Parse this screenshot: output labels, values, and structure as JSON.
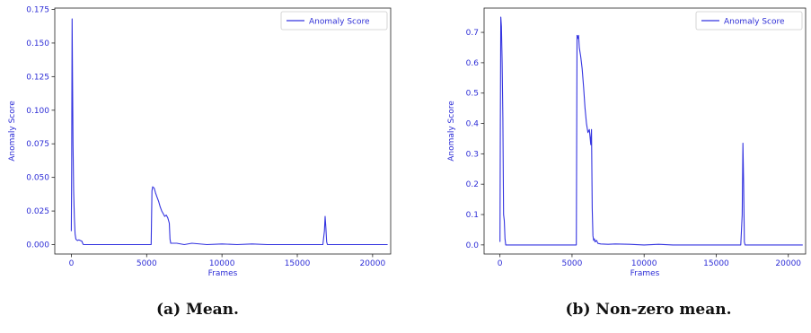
{
  "chart_data": [
    {
      "type": "line",
      "caption": "(a) Mean.",
      "xlabel": "Frames",
      "ylabel": "Anomaly Score",
      "xlim": [
        -1100,
        21200
      ],
      "ylim": [
        -0.007,
        0.176
      ],
      "xticks": [
        0,
        5000,
        10000,
        15000,
        20000
      ],
      "xtick_labels": [
        "0",
        "5000",
        "10000",
        "15000",
        "20000"
      ],
      "yticks": [
        0.0,
        0.025,
        0.05,
        0.075,
        0.1,
        0.125,
        0.15,
        0.175
      ],
      "ytick_labels": [
        "0.000",
        "0.025",
        "0.050",
        "0.075",
        "0.100",
        "0.125",
        "0.150",
        "0.175"
      ],
      "legend": "top-right",
      "grid": false,
      "series": [
        {
          "name": "Anomaly Score",
          "color": "#3434e0",
          "x": [
            0,
            20,
            50,
            80,
            110,
            150,
            200,
            250,
            300,
            400,
            500,
            700,
            750,
            800,
            1000,
            2000,
            3000,
            4000,
            5000,
            5200,
            5300,
            5350,
            5400,
            5500,
            5600,
            5700,
            5800,
            5900,
            6000,
            6100,
            6200,
            6300,
            6400,
            6500,
            6550,
            6600,
            7000,
            7500,
            8000,
            9000,
            10000,
            11000,
            12000,
            13000,
            14000,
            15000,
            16000,
            16500,
            16700,
            16800,
            16850,
            16900,
            16950,
            17000,
            17500,
            18000,
            19000,
            20000,
            21000
          ],
          "y": [
            0.01,
            0.06,
            0.168,
            0.12,
            0.075,
            0.04,
            0.02,
            0.008,
            0.004,
            0.003,
            0.0035,
            0.0025,
            0.001,
            0.0,
            0.0,
            0.0,
            0.0,
            0.0,
            0.0,
            0.0,
            0.0,
            0.04,
            0.043,
            0.042,
            0.038,
            0.035,
            0.032,
            0.028,
            0.025,
            0.023,
            0.021,
            0.022,
            0.02,
            0.016,
            0.004,
            0.001,
            0.001,
            0.0,
            0.001,
            0.0,
            0.0005,
            0.0,
            0.0005,
            0.0,
            0.0,
            0.0,
            0.0,
            0.0,
            0.0,
            0.01,
            0.021,
            0.012,
            0.002,
            0.0,
            0.0,
            0.0,
            0.0,
            0.0,
            0.0
          ]
        }
      ]
    },
    {
      "type": "line",
      "caption": "(b) Non-zero mean.",
      "xlabel": "Frames",
      "ylabel": "Anomaly Score",
      "xlim": [
        -1100,
        21200
      ],
      "ylim": [
        -0.03,
        0.78
      ],
      "xticks": [
        0,
        5000,
        10000,
        15000,
        20000
      ],
      "xtick_labels": [
        "0",
        "5000",
        "10000",
        "15000",
        "20000"
      ],
      "yticks": [
        0.0,
        0.1,
        0.2,
        0.3,
        0.4,
        0.5,
        0.6,
        0.7
      ],
      "ytick_labels": [
        "0.0",
        "0.1",
        "0.2",
        "0.3",
        "0.4",
        "0.5",
        "0.6",
        "0.7"
      ],
      "legend": "top-right",
      "grid": false,
      "series": [
        {
          "name": "Anomaly Score",
          "color": "#3434e0",
          "x": [
            0,
            30,
            60,
            100,
            150,
            200,
            250,
            300,
            350,
            400,
            500,
            1000,
            2000,
            3000,
            4000,
            5000,
            5300,
            5350,
            5400,
            5450,
            5500,
            5600,
            5700,
            5800,
            5900,
            6000,
            6100,
            6200,
            6300,
            6350,
            6400,
            6450,
            6500,
            6550,
            6600,
            6700,
            6800,
            7000,
            7500,
            8000,
            9000,
            10000,
            11000,
            12000,
            13000,
            14000,
            15000,
            16000,
            16500,
            16700,
            16800,
            16850,
            16900,
            16950,
            17000,
            17500,
            18000,
            19000,
            20000,
            21000
          ],
          "y": [
            0.01,
            0.4,
            0.75,
            0.72,
            0.6,
            0.42,
            0.1,
            0.08,
            0.02,
            0.0,
            0.0,
            0.0,
            0.0,
            0.0,
            0.0,
            0.0,
            0.0,
            0.69,
            0.68,
            0.69,
            0.65,
            0.62,
            0.58,
            0.52,
            0.45,
            0.4,
            0.37,
            0.38,
            0.33,
            0.38,
            0.12,
            0.03,
            0.015,
            0.02,
            0.01,
            0.015,
            0.005,
            0.003,
            0.002,
            0.003,
            0.002,
            0.0,
            0.002,
            0.0,
            0.0,
            0.0,
            0.0,
            0.0,
            0.0,
            0.0,
            0.1,
            0.335,
            0.2,
            0.01,
            0.0,
            0.0,
            0.0,
            0.0,
            0.0,
            0.0
          ]
        }
      ]
    }
  ]
}
